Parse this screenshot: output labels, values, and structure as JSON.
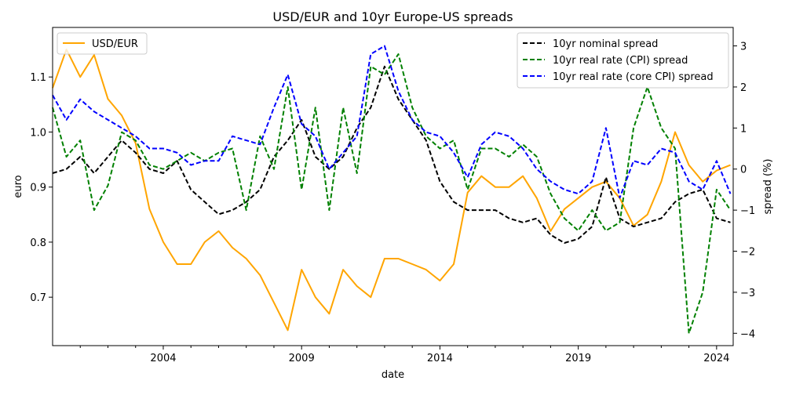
{
  "chart_data": {
    "type": "line",
    "title": "USD/EUR and 10yr Europe-US spreads",
    "xlabel": "date",
    "ylabel_left": "euro",
    "ylabel_right": "spread (%)",
    "xlim": [
      2000.0,
      2024.6
    ],
    "ylim_left": [
      0.612,
      1.19
    ],
    "ylim_right": [
      -4.3,
      3.45
    ],
    "x_ticks": [
      2004,
      2009,
      2014,
      2019,
      2024
    ],
    "x_tick_labels": [
      "2004",
      "2009",
      "2014",
      "2019",
      "2024"
    ],
    "y_ticks_left": [
      0.7,
      0.8,
      0.9,
      1.0,
      1.1
    ],
    "y_tick_labels_left": [
      "0.7",
      "0.8",
      "0.9",
      "1.0",
      "1.1"
    ],
    "y_ticks_right": [
      -4,
      -3,
      -2,
      -1,
      0,
      1,
      2,
      3
    ],
    "y_tick_labels_right": [
      "−4",
      "−3",
      "−2",
      "−1",
      "0",
      "1",
      "2",
      "3"
    ],
    "legend_left": {
      "placement": "top-left",
      "entries": [
        "USD/EUR"
      ]
    },
    "legend_right": {
      "placement": "top-right",
      "entries": [
        "10yr nominal spread",
        "10yr real rate (CPI) spread",
        "10yr real rate (core CPI) spread"
      ]
    },
    "series": [
      {
        "name": "USD/EUR",
        "axis": "left",
        "color": "#ffa500",
        "dash": "solid",
        "x": [
          2000.0,
          2000.5,
          2001.0,
          2001.5,
          2002.0,
          2002.5,
          2003.0,
          2003.5,
          2004.0,
          2004.5,
          2005.0,
          2005.5,
          2006.0,
          2006.5,
          2007.0,
          2007.5,
          2008.0,
          2008.5,
          2009.0,
          2009.5,
          2010.0,
          2010.5,
          2011.0,
          2011.5,
          2012.0,
          2012.5,
          2013.0,
          2013.5,
          2014.0,
          2014.5,
          2015.0,
          2015.5,
          2016.0,
          2016.5,
          2017.0,
          2017.5,
          2018.0,
          2018.5,
          2019.0,
          2019.5,
          2020.0,
          2020.5,
          2021.0,
          2021.5,
          2022.0,
          2022.5,
          2023.0,
          2023.5,
          2024.0,
          2024.5
        ],
        "values": [
          1.08,
          1.15,
          1.1,
          1.14,
          1.06,
          1.03,
          0.98,
          0.86,
          0.8,
          0.76,
          0.76,
          0.8,
          0.82,
          0.79,
          0.77,
          0.74,
          0.69,
          0.64,
          0.75,
          0.7,
          0.67,
          0.75,
          0.72,
          0.7,
          0.77,
          0.77,
          0.76,
          0.75,
          0.73,
          0.76,
          0.89,
          0.92,
          0.9,
          0.9,
          0.92,
          0.88,
          0.82,
          0.86,
          0.88,
          0.9,
          0.91,
          0.88,
          0.83,
          0.85,
          0.91,
          1.0,
          0.94,
          0.91,
          0.93,
          0.94
        ]
      },
      {
        "name": "10yr nominal spread",
        "axis": "right",
        "color": "#000000",
        "dash": "dashed",
        "x": [
          2000.0,
          2000.5,
          2001.0,
          2001.5,
          2002.0,
          2002.5,
          2003.0,
          2003.5,
          2004.0,
          2004.5,
          2005.0,
          2005.5,
          2006.0,
          2006.5,
          2007.0,
          2007.5,
          2008.0,
          2008.5,
          2009.0,
          2009.5,
          2010.0,
          2010.5,
          2011.0,
          2011.5,
          2012.0,
          2012.5,
          2013.0,
          2013.5,
          2014.0,
          2014.5,
          2015.0,
          2015.5,
          2016.0,
          2016.5,
          2017.0,
          2017.5,
          2018.0,
          2018.5,
          2019.0,
          2019.5,
          2020.0,
          2020.5,
          2021.0,
          2021.5,
          2022.0,
          2022.5,
          2023.0,
          2023.5,
          2024.0,
          2024.5
        ],
        "values": [
          -0.1,
          0.0,
          0.3,
          -0.1,
          0.3,
          0.7,
          0.4,
          0.0,
          -0.1,
          0.2,
          -0.5,
          -0.8,
          -1.1,
          -1.0,
          -0.8,
          -0.5,
          0.3,
          0.7,
          1.2,
          0.3,
          0.0,
          0.3,
          1.0,
          1.5,
          2.5,
          1.7,
          1.2,
          0.7,
          -0.3,
          -0.8,
          -1.0,
          -1.0,
          -1.0,
          -1.2,
          -1.3,
          -1.2,
          -1.6,
          -1.8,
          -1.7,
          -1.4,
          -0.2,
          -1.2,
          -1.4,
          -1.3,
          -1.2,
          -0.8,
          -0.6,
          -0.5,
          -1.2,
          -1.3
        ]
      },
      {
        "name": "10yr real rate (CPI) spread",
        "axis": "right",
        "color": "#008000",
        "dash": "dashed",
        "x": [
          2000.0,
          2000.5,
          2001.0,
          2001.5,
          2002.0,
          2002.5,
          2003.0,
          2003.5,
          2004.0,
          2004.5,
          2005.0,
          2005.5,
          2006.0,
          2006.5,
          2007.0,
          2007.5,
          2008.0,
          2008.5,
          2009.0,
          2009.5,
          2010.0,
          2010.5,
          2011.0,
          2011.5,
          2012.0,
          2012.5,
          2013.0,
          2013.5,
          2014.0,
          2014.5,
          2015.0,
          2015.5,
          2016.0,
          2016.5,
          2017.0,
          2017.5,
          2018.0,
          2018.5,
          2019.0,
          2019.5,
          2020.0,
          2020.5,
          2021.0,
          2021.5,
          2022.0,
          2022.5,
          2023.0,
          2023.5,
          2024.0,
          2024.5
        ],
        "values": [
          1.5,
          0.3,
          0.7,
          -1.0,
          -0.4,
          0.9,
          0.7,
          0.1,
          0.0,
          0.2,
          0.4,
          0.2,
          0.4,
          0.5,
          -1.0,
          0.8,
          0.0,
          2.0,
          -0.5,
          1.5,
          -1.0,
          1.5,
          -0.1,
          2.5,
          2.3,
          2.8,
          1.5,
          0.8,
          0.5,
          0.7,
          -0.5,
          0.5,
          0.5,
          0.3,
          0.6,
          0.3,
          -0.6,
          -1.2,
          -1.5,
          -1.0,
          -1.5,
          -1.3,
          1.0,
          2.0,
          1.0,
          0.5,
          -4.0,
          -3.0,
          -0.5,
          -1.0
        ]
      },
      {
        "name": "10yr real rate (core CPI) spread",
        "axis": "right",
        "color": "#0000ff",
        "dash": "dashed",
        "x": [
          2000.0,
          2000.5,
          2001.0,
          2001.5,
          2002.0,
          2002.5,
          2003.0,
          2003.5,
          2004.0,
          2004.5,
          2005.0,
          2005.5,
          2006.0,
          2006.5,
          2007.0,
          2007.5,
          2008.0,
          2008.5,
          2009.0,
          2009.5,
          2010.0,
          2010.5,
          2011.0,
          2011.5,
          2012.0,
          2012.5,
          2013.0,
          2013.5,
          2014.0,
          2014.5,
          2015.0,
          2015.5,
          2016.0,
          2016.5,
          2017.0,
          2017.5,
          2018.0,
          2018.5,
          2019.0,
          2019.5,
          2020.0,
          2020.5,
          2021.0,
          2021.5,
          2022.0,
          2022.5,
          2023.0,
          2023.5,
          2024.0,
          2024.5
        ],
        "values": [
          1.8,
          1.2,
          1.7,
          1.4,
          1.2,
          1.0,
          0.8,
          0.5,
          0.5,
          0.4,
          0.1,
          0.2,
          0.2,
          0.8,
          0.7,
          0.6,
          1.5,
          2.3,
          1.1,
          0.8,
          0.0,
          0.4,
          0.8,
          2.8,
          3.0,
          1.9,
          1.2,
          0.9,
          0.8,
          0.4,
          -0.2,
          0.6,
          0.9,
          0.8,
          0.5,
          0.0,
          -0.3,
          -0.5,
          -0.6,
          -0.3,
          1.0,
          -0.7,
          0.2,
          0.1,
          0.5,
          0.4,
          -0.3,
          -0.5,
          0.2,
          -0.6
        ]
      }
    ]
  }
}
